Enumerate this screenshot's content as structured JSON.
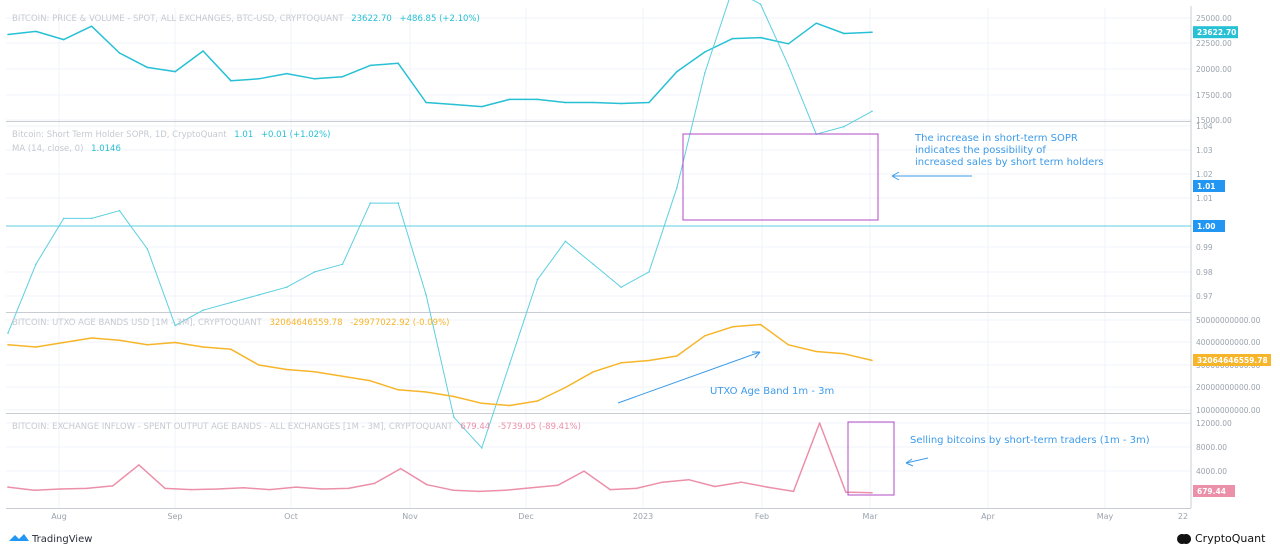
{
  "footer": {
    "left_brand": "TradingView",
    "right_brand": "CryptoQuant"
  },
  "colors": {
    "price": "#27c0d4",
    "sopr": "#5ccfe0",
    "utxo": "#f7b52a",
    "inflow": "#ec8fa9",
    "box": "#b04bc4",
    "annotation": "#3d9be9",
    "grid": "#f0f3fa",
    "border": "#c9cdd3",
    "badge_blue": "#2196f3"
  },
  "x_axis": {
    "ticks": [
      "Aug",
      "Sep",
      "Oct",
      "Nov",
      "Dec",
      "2023",
      "Feb",
      "Mar",
      "Apr",
      "May"
    ],
    "end_label": "22"
  },
  "chart_data": [
    {
      "type": "line",
      "title": "BITCOIN: PRICE & VOLUME - SPOT, ALL EXCHANGES, BTC-USD, CRYPTOQUANT",
      "last_value": "23622.70",
      "change": "+486.85 (+2.10%)",
      "badge": "23622.70",
      "y_ticks": [
        "25000.00",
        "22500.00",
        "20000.00",
        "17500.00",
        "15000.00"
      ],
      "ylim": [
        15000,
        25500
      ],
      "x": [
        "Jul 25",
        "Aug 1",
        "Aug 8",
        "Aug 15",
        "Aug 22",
        "Aug 29",
        "Sep 5",
        "Sep 12",
        "Sep 19",
        "Sep 26",
        "Oct 3",
        "Oct 10",
        "Oct 17",
        "Oct 24",
        "Oct 31",
        "Nov 7",
        "Nov 14",
        "Nov 21",
        "Nov 28",
        "Dec 5",
        "Dec 12",
        "Dec 19",
        "Dec 26",
        "Jan 2",
        "Jan 9",
        "Jan 16",
        "Jan 23",
        "Jan 30",
        "Feb 6",
        "Feb 13",
        "Feb 20",
        "Feb 27"
      ],
      "series": [
        {
          "values": [
            23400,
            23700,
            22900,
            24200,
            21600,
            20200,
            19800,
            21800,
            18900,
            19100,
            19600,
            19100,
            19300,
            20400,
            20600,
            16800,
            16600,
            16400,
            17100,
            17100,
            16800,
            16800,
            16700,
            16800,
            19800,
            21700,
            23000,
            23100,
            22500,
            24500,
            23500,
            23622.7
          ]
        }
      ]
    },
    {
      "type": "line",
      "title": "Bitcoin: Short Term Holder SOPR, 1D, CryptoQuant",
      "last_value": "1.01",
      "change": "+0.01 (+1.02%)",
      "ma_label": "MA (14, close, 0)",
      "ma_value": "1.0146",
      "badge_value": "1.01",
      "badge_line": "1.00",
      "y_ticks": [
        "1.04",
        "1.03",
        "1.02",
        "1.01",
        "1.00",
        "0.99",
        "0.98",
        "0.97"
      ],
      "ylim": [
        0.965,
        1.04
      ],
      "reference_line": 1.0,
      "x": [
        "Jul 25",
        "Aug 1",
        "Aug 8",
        "Aug 15",
        "Aug 22",
        "Aug 29",
        "Sep 5",
        "Sep 12",
        "Sep 19",
        "Sep 26",
        "Oct 3",
        "Oct 10",
        "Oct 17",
        "Oct 24",
        "Oct 31",
        "Nov 7",
        "Nov 14",
        "Nov 21",
        "Nov 28",
        "Dec 5",
        "Dec 12",
        "Dec 19",
        "Dec 26",
        "Jan 2",
        "Jan 9",
        "Jan 16",
        "Jan 23",
        "Jan 30",
        "Feb 6",
        "Feb 13",
        "Feb 20",
        "Feb 27"
      ],
      "series": [
        {
          "values": [
            0.986,
            0.995,
            1.001,
            1.001,
            1.002,
            0.997,
            0.987,
            0.989,
            0.99,
            0.991,
            0.992,
            0.994,
            0.995,
            1.003,
            1.003,
            0.991,
            0.975,
            0.971,
            0.982,
            0.993,
            0.998,
            0.995,
            0.992,
            0.994,
            1.005,
            1.02,
            1.031,
            1.029,
            1.021,
            1.012,
            1.013,
            1.015
          ]
        }
      ]
    },
    {
      "type": "line",
      "title": "BITCOIN: UTXO AGE BANDS USD [1M - 3M], CRYPTOQUANT",
      "last_value": "32064646559.78",
      "change": "-29977022.92 (-0.09%)",
      "badge": "32064646559.78",
      "y_ticks": [
        "50000000000.00",
        "40000000000.00",
        "30000000000.00",
        "20000000000.00",
        "10000000000.00"
      ],
      "ylim": [
        10000000000,
        52000000000
      ],
      "x": [
        "Jul 25",
        "Aug 1",
        "Aug 8",
        "Aug 15",
        "Aug 22",
        "Aug 29",
        "Sep 5",
        "Sep 12",
        "Sep 19",
        "Sep 26",
        "Oct 3",
        "Oct 10",
        "Oct 17",
        "Oct 24",
        "Oct 31",
        "Nov 7",
        "Nov 14",
        "Nov 21",
        "Nov 28",
        "Dec 5",
        "Dec 12",
        "Dec 19",
        "Dec 26",
        "Jan 2",
        "Jan 9",
        "Jan 16",
        "Jan 23",
        "Jan 30",
        "Feb 6",
        "Feb 13",
        "Feb 20",
        "Feb 27"
      ],
      "series": [
        {
          "values": [
            39000000000,
            38000000000,
            40000000000,
            42000000000,
            41000000000,
            39000000000,
            40000000000,
            38000000000,
            37000000000,
            30000000000,
            28000000000,
            27000000000,
            25000000000,
            23000000000,
            19000000000,
            18000000000,
            16000000000,
            13000000000,
            12000000000,
            14000000000,
            20000000000,
            27000000000,
            31000000000,
            32000000000,
            34000000000,
            43000000000,
            47000000000,
            48000000000,
            39000000000,
            36000000000,
            35000000000,
            32064646559.78
          ]
        }
      ]
    },
    {
      "type": "line",
      "title": "BITCOIN: EXCHANGE INFLOW - SPENT OUTPUT AGE BANDS - ALL EXCHANGES [1M - 3M], CRYPTOQUANT",
      "last_value": "679.44",
      "change": "-5739.05 (-89.41%)",
      "badge": "679.44",
      "y_ticks": [
        "12000.00",
        "8000.00",
        "4000.00"
      ],
      "ylim": [
        0,
        12500
      ],
      "x": [
        "Jul 25",
        "Aug 1",
        "Aug 8",
        "Aug 15",
        "Aug 22",
        "Aug 29",
        "Sep 5",
        "Sep 12",
        "Sep 19",
        "Sep 26",
        "Oct 3",
        "Oct 10",
        "Oct 17",
        "Oct 24",
        "Oct 31",
        "Nov 7",
        "Nov 14",
        "Nov 21",
        "Nov 28",
        "Dec 5",
        "Dec 12",
        "Dec 19",
        "Dec 26",
        "Jan 2",
        "Jan 9",
        "Jan 16",
        "Jan 23",
        "Jan 30",
        "Feb 6",
        "Feb 13",
        "Feb 20",
        "Feb 24",
        "Feb 25",
        "Feb 27"
      ],
      "series": [
        {
          "values": [
            1600,
            1100,
            1300,
            1400,
            1800,
            5200,
            1400,
            1200,
            1300,
            1500,
            1200,
            1600,
            1300,
            1400,
            2200,
            4600,
            2000,
            1100,
            900,
            1100,
            1500,
            1900,
            4200,
            1200,
            1400,
            2400,
            2800,
            1700,
            2400,
            1600,
            900,
            12000,
            800,
            679.44
          ]
        }
      ]
    }
  ],
  "annotations": {
    "sopr_note": [
      "The increase in  short-term SOPR",
      "indicates the possibility of",
      " increased sales by short term holders"
    ],
    "utxo_note": "UTXO Age Band 1m - 3m",
    "inflow_note": "Selling bitcoins by short-term traders (1m - 3m)"
  }
}
